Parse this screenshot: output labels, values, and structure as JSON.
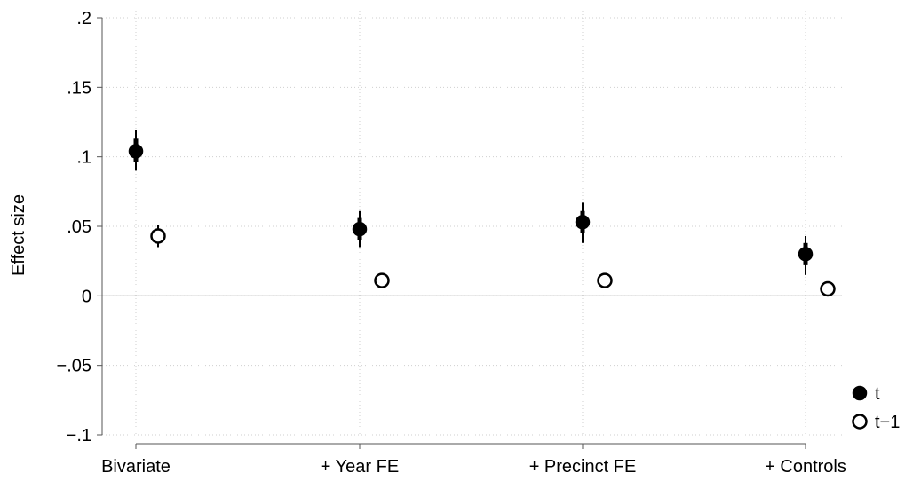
{
  "chart_data": {
    "type": "scatter",
    "title": "",
    "xlabel": "",
    "ylabel": "Effect size",
    "ylim": [
      -0.1,
      0.2
    ],
    "grid": true,
    "legend_position": "bottom-right",
    "categories": [
      "Bivariate",
      "+ Year FE",
      "+ Precinct FE",
      "+ Controls"
    ],
    "y_ticks": [
      {
        "value": -0.1,
        "label": "−.1"
      },
      {
        "value": -0.05,
        "label": "−.05"
      },
      {
        "value": 0,
        "label": "0"
      },
      {
        "value": 0.05,
        "label": ".05"
      },
      {
        "value": 0.1,
        "label": ".1"
      },
      {
        "value": 0.15,
        "label": ".15"
      },
      {
        "value": 0.2,
        "label": ".2"
      }
    ],
    "series": [
      {
        "name": "t",
        "marker": "filled-circle",
        "color": "#000000",
        "values": [
          0.104,
          0.048,
          0.053,
          0.03
        ],
        "ci_inner": [
          [
            0.096,
            0.113
          ],
          [
            0.04,
            0.056
          ],
          [
            0.045,
            0.061
          ],
          [
            0.022,
            0.038
          ]
        ],
        "ci_outer": [
          [
            0.09,
            0.119
          ],
          [
            0.035,
            0.061
          ],
          [
            0.038,
            0.067
          ],
          [
            0.015,
            0.043
          ]
        ]
      },
      {
        "name": "t−1",
        "marker": "hollow-circle",
        "color": "#000000",
        "values": [
          0.043,
          0.011,
          0.011,
          0.005
        ],
        "ci_inner": [
          [
            0.038,
            0.047
          ],
          [
            0.009,
            0.013
          ],
          [
            0.009,
            0.013
          ],
          [
            0.003,
            0.007
          ]
        ],
        "ci_outer": [
          [
            0.035,
            0.051
          ],
          [
            0.008,
            0.014
          ],
          [
            0.008,
            0.014
          ],
          [
            0.002,
            0.008
          ]
        ]
      }
    ]
  }
}
